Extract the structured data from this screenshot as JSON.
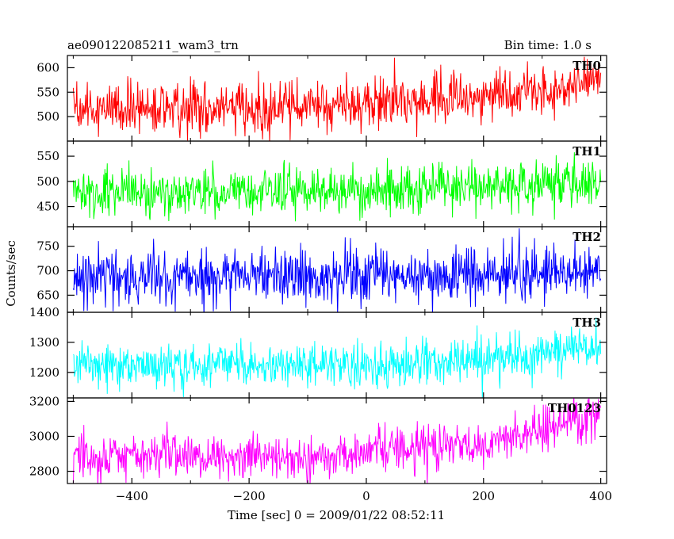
{
  "header": {
    "title": "ae090122085211_wam3_trn",
    "bin_time": "Bin time: 1.0 s"
  },
  "axes": {
    "ylabel": "Counts/sec",
    "xlabel": "Time [sec] 0 = 2009/01/22 08:52:11"
  },
  "chart_data": {
    "type": "line",
    "x_range": [
      -510,
      410
    ],
    "x_ticks": [
      -400,
      -200,
      0,
      200,
      400
    ],
    "x_tick_labels": [
      "−400",
      "−200",
      "0",
      "200",
      "400"
    ],
    "panels": [
      {
        "name": "TH0",
        "color": "#ff0000",
        "ylim": [
          450,
          625
        ],
        "yticks": [
          500,
          550,
          600
        ],
        "trend": {
          "x": [
            -500,
            -200,
            0,
            200,
            320,
            400
          ],
          "y": [
            515,
            518,
            527,
            540,
            555,
            580
          ]
        },
        "noise_sd": 25
      },
      {
        "name": "TH1",
        "color": "#00ff00",
        "ylim": [
          410,
          580
        ],
        "yticks": [
          450,
          500,
          550
        ],
        "trend": {
          "x": [
            -500,
            0,
            400
          ],
          "y": [
            478,
            482,
            495
          ]
        },
        "noise_sd": 24
      },
      {
        "name": "TH2",
        "color": "#0000ff",
        "ylim": [
          615,
          790
        ],
        "yticks": [
          650,
          700,
          750
        ],
        "trend": {
          "x": [
            -500,
            0,
            400
          ],
          "y": [
            690,
            688,
            698
          ]
        },
        "noise_sd": 28
      },
      {
        "name": "TH3",
        "color": "#00ffff",
        "ylim": [
          1115,
          1400
        ],
        "yticks": [
          1200,
          1300,
          1400
        ],
        "trend": {
          "x": [
            -500,
            0,
            200,
            400
          ],
          "y": [
            1220,
            1225,
            1245,
            1290
          ]
        },
        "noise_sd": 35
      },
      {
        "name": "TH0123",
        "color": "#ff00ff",
        "ylim": [
          2730,
          3220
        ],
        "yticks": [
          2800,
          3000,
          3200
        ],
        "trend": {
          "x": [
            -500,
            -100,
            0,
            200,
            300,
            400
          ],
          "y": [
            2880,
            2885,
            2910,
            2960,
            3030,
            3130
          ]
        },
        "noise_sd": 62
      }
    ]
  }
}
